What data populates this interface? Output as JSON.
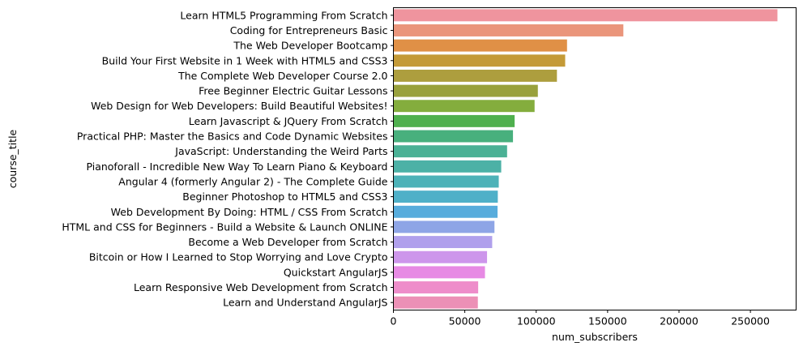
{
  "chart_data": {
    "type": "bar",
    "orientation": "horizontal",
    "xlabel": "num_subscribers",
    "ylabel": "course_title",
    "xlim": [
      0,
      282000
    ],
    "xticks": [
      0,
      50000,
      100000,
      150000,
      200000,
      250000
    ],
    "grid": false,
    "categories": [
      "Learn HTML5 Programming From Scratch",
      "Coding for Entrepreneurs Basic",
      "The Web Developer Bootcamp",
      "Build Your First Website in 1 Week with HTML5 and CSS3",
      "The Complete Web Developer Course 2.0",
      "Free Beginner Electric Guitar Lessons",
      "Web Design for Web Developers: Build Beautiful Websites!",
      "Learn Javascript & JQuery From Scratch",
      "Practical PHP: Master the Basics and Code Dynamic Websites",
      "JavaScript: Understanding the Weird Parts",
      "Pianoforall - Incredible New Way To Learn Piano & Keyboard",
      "Angular 4 (formerly Angular 2) - The Complete Guide",
      "Beginner Photoshop to HTML5 and CSS3",
      "Web Development By Doing: HTML / CSS From Scratch",
      "HTML and CSS for Beginners - Build a Website & Launch ONLINE",
      "Become a Web Developer from Scratch",
      "Bitcoin or How I Learned to Stop Worrying and Love Crypto",
      "Quickstart AngularJS",
      "Learn Responsive Web Development from Scratch",
      "Learn and Understand AngularJS"
    ],
    "values": [
      268923,
      161029,
      121584,
      120291,
      114512,
      101154,
      98867,
      84897,
      83737,
      79612,
      75499,
      73783,
      73110,
      72932,
      70773,
      69186,
      65576,
      64128,
      59361,
      59140
    ],
    "colors": [
      "#ef949e",
      "#ea957b",
      "#e09046",
      "#c49a37",
      "#ad9e3e",
      "#99a13c",
      "#84ad3d",
      "#4fb04e",
      "#48b07d",
      "#4bb195",
      "#4cb1a6",
      "#4db2b8",
      "#4fb0c8",
      "#57acdc",
      "#8ea5e6",
      "#b0a0ec",
      "#cd96eb",
      "#e78ae4",
      "#ee8dca",
      "#ec90b6"
    ]
  }
}
